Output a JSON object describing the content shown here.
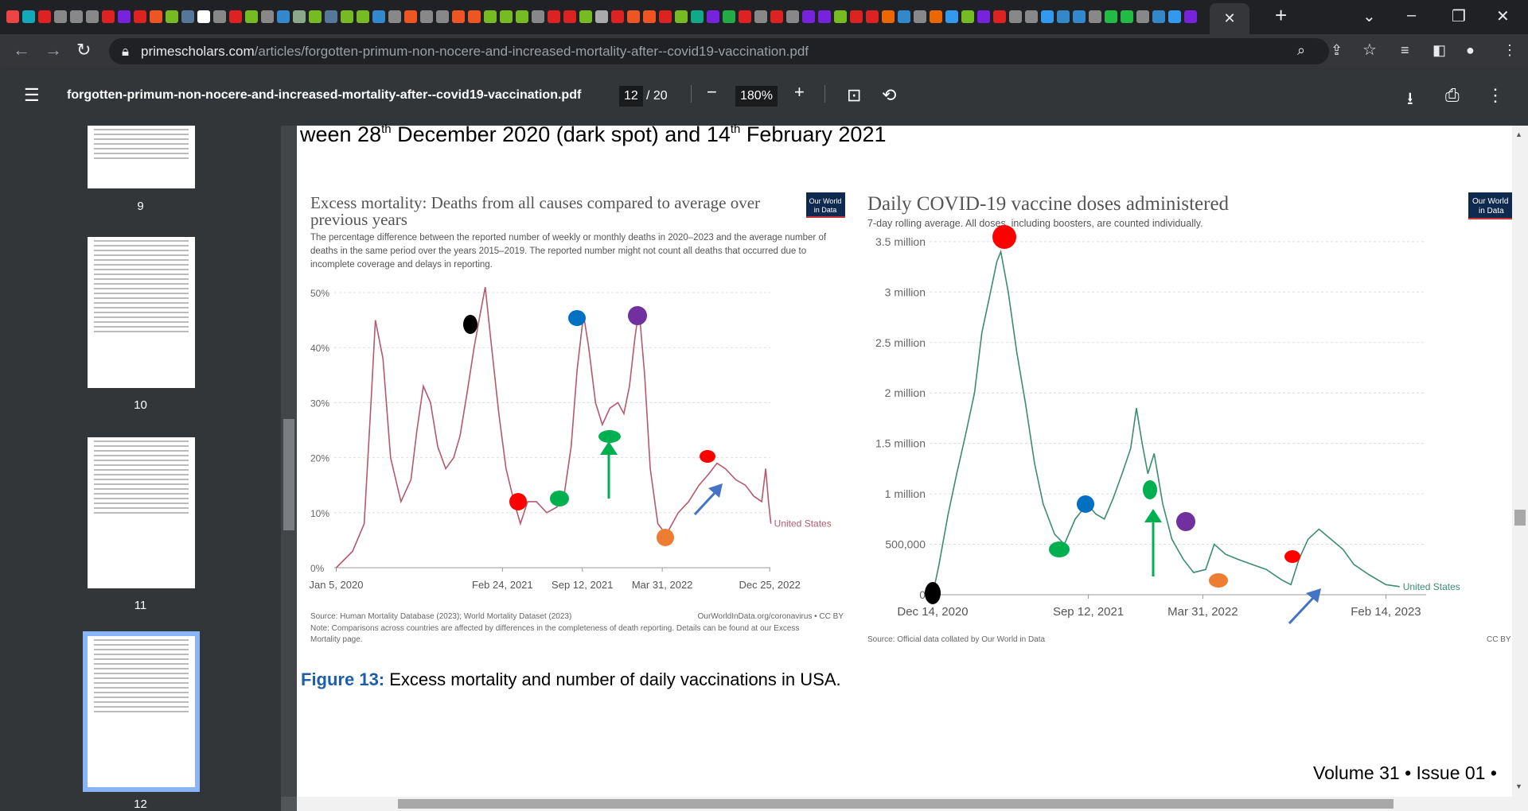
{
  "browser": {
    "favicon_colors": [
      "#e44",
      "#1ab",
      "#d22",
      "#888",
      "#888",
      "#888",
      "#d22",
      "#72d",
      "#d22",
      "#e52",
      "#7b2",
      "#579",
      "#fff",
      "#888",
      "#d22",
      "#7b2",
      "#888",
      "#38c",
      "#8a8",
      "#7b2",
      "#579",
      "#7b2",
      "#7b2",
      "#38c",
      "#888",
      "#e52",
      "#888",
      "#888",
      "#e52",
      "#e52",
      "#7b2",
      "#7b2",
      "#7b2",
      "#888",
      "#d22",
      "#d22",
      "#7b2",
      "#aaa",
      "#d22",
      "#e52",
      "#e52",
      "#d22",
      "#7b2",
      "#1a8",
      "#72d",
      "#2a4",
      "#d22",
      "#888",
      "#d22",
      "#888",
      "#72d",
      "#72d",
      "#7b2",
      "#d22",
      "#d22",
      "#e60",
      "#38c",
      "#888",
      "#e60",
      "#39e",
      "#7b2",
      "#72d",
      "#d22",
      "#888",
      "#888",
      "#39e",
      "#38c",
      "#38c",
      "#888",
      "#2b4",
      "#2b4",
      "#888",
      "#38c",
      "#39e",
      "#72d"
    ],
    "close_tab": "✕",
    "new_tab": "+",
    "url_host": "primescholars.com",
    "url_path": "/articles/forgotten-primum-non-nocere-and-increased-mortality-after--covid19-vaccination.pdf"
  },
  "pdf_toolbar": {
    "filename": "forgotten-primum-non-nocere-and-increased-mortality-after--covid19-vaccination.pdf",
    "page_current": "12",
    "page_total": "/ 20",
    "zoom": "180%"
  },
  "sidebar": {
    "thumbnails": [
      {
        "label": "9"
      },
      {
        "label": "10"
      },
      {
        "label": "11"
      },
      {
        "label": "12",
        "selected": true
      }
    ]
  },
  "document": {
    "heading_pre": "ween 28",
    "heading_sup1": "th",
    "heading_mid": " December 2020 (dark spot) and 14",
    "heading_sup2": "th",
    "heading_post": " February 2021",
    "caption_label": "Figure 13:",
    "caption_text": " Excess mortality and number of daily vaccinations in USA.",
    "footer": "Volume 31 • Issue 01 •",
    "owid_logo": "Our World in Data",
    "marker_colors": {
      "black": "#000000",
      "red": "#ff0000",
      "green": "#00b050",
      "blue": "#0070c0",
      "purple": "#7030a0",
      "orange": "#ed7d31",
      "arrow_green": "#00b050",
      "arrow_blue": "#4472c4"
    }
  },
  "chart_data": [
    {
      "type": "line",
      "title_line1": "Excess mortality: Deaths from all causes compared to average over",
      "title_line2": "previous years",
      "subtitle": [
        "The percentage difference between the reported number of weekly or monthly deaths in 2020–2023 and the average number of",
        "deaths in the same period over the years 2015–2019. The reported number might not count all deaths that occurred due to",
        "incomplete coverage and delays in reporting."
      ],
      "ytick_labels": [
        "0%",
        "10%",
        "20%",
        "30%",
        "40%",
        "50%"
      ],
      "yticks": [
        0,
        10,
        20,
        30,
        40,
        50
      ],
      "xtick_labels": [
        "Jan 5, 2020",
        "Feb 24, 2021",
        "Sep 12, 2021",
        "Mar 31, 2022",
        "Dec 25, 2022"
      ],
      "xticks": [
        "2020-01-05",
        "2021-02-24",
        "2021-09-12",
        "2022-03-31",
        "2022-12-25"
      ],
      "series": [
        {
          "name": "United States",
          "color": "#b5596f",
          "points": [
            [
              "2020-01-05",
              0
            ],
            [
              "2020-02-15",
              3
            ],
            [
              "2020-03-15",
              8
            ],
            [
              "2020-04-01",
              30
            ],
            [
              "2020-04-12",
              45
            ],
            [
              "2020-05-01",
              38
            ],
            [
              "2020-05-20",
              20
            ],
            [
              "2020-06-15",
              12
            ],
            [
              "2020-07-10",
              16
            ],
            [
              "2020-07-25",
              25
            ],
            [
              "2020-08-10",
              33
            ],
            [
              "2020-08-28",
              30
            ],
            [
              "2020-09-15",
              22
            ],
            [
              "2020-10-05",
              18
            ],
            [
              "2020-10-25",
              20
            ],
            [
              "2020-11-10",
              24
            ],
            [
              "2020-11-28",
              32
            ],
            [
              "2020-12-15",
              40
            ],
            [
              "2020-12-30",
              46
            ],
            [
              "2021-01-12",
              51
            ],
            [
              "2021-01-28",
              40
            ],
            [
              "2021-02-15",
              28
            ],
            [
              "2021-03-05",
              18
            ],
            [
              "2021-03-25",
              12
            ],
            [
              "2021-04-10",
              8
            ],
            [
              "2021-04-28",
              12
            ],
            [
              "2021-05-20",
              12
            ],
            [
              "2021-06-15",
              10
            ],
            [
              "2021-07-10",
              11
            ],
            [
              "2021-07-28",
              13
            ],
            [
              "2021-08-15",
              22
            ],
            [
              "2021-08-30",
              36
            ],
            [
              "2021-09-15",
              46
            ],
            [
              "2021-09-28",
              40
            ],
            [
              "2021-10-15",
              30
            ],
            [
              "2021-11-01",
              26
            ],
            [
              "2021-11-20",
              29
            ],
            [
              "2021-12-10",
              30
            ],
            [
              "2021-12-25",
              28
            ],
            [
              "2022-01-08",
              33
            ],
            [
              "2022-01-22",
              42
            ],
            [
              "2022-02-01",
              47
            ],
            [
              "2022-02-15",
              35
            ],
            [
              "2022-03-01",
              18
            ],
            [
              "2022-03-20",
              8
            ],
            [
              "2022-04-10",
              6
            ],
            [
              "2022-05-10",
              10
            ],
            [
              "2022-06-05",
              12
            ],
            [
              "2022-07-01",
              15
            ],
            [
              "2022-07-25",
              17
            ],
            [
              "2022-08-15",
              19
            ],
            [
              "2022-09-05",
              18
            ],
            [
              "2022-10-01",
              16
            ],
            [
              "2022-10-25",
              15
            ],
            [
              "2022-11-15",
              13
            ],
            [
              "2022-12-05",
              12
            ],
            [
              "2022-12-15",
              18
            ],
            [
              "2022-12-22",
              12
            ],
            [
              "2022-12-28",
              8
            ]
          ]
        }
      ],
      "source": "Source: Human Mortality Database (2023); World Mortality Dataset (2023)",
      "credit": "OurWorldInData.org/coronavirus • CC BY",
      "note_line1": "Note: Comparisons across countries are affected by differences in the completeness of death reporting. Details can be found at our Excess",
      "note_line2": "Mortality page."
    },
    {
      "type": "line",
      "title": "Daily COVID-19 vaccine doses administered",
      "subtitle": "7-day rolling average. All doses, including boosters, are counted individually.",
      "ytick_labels": [
        "0",
        "500,000",
        "1 million",
        "1.5 million",
        "2 million",
        "2.5 million",
        "3 million",
        "3.5 million"
      ],
      "yticks": [
        0,
        0.5,
        1,
        1.5,
        2,
        2.5,
        3,
        3.5
      ],
      "xtick_labels": [
        "Dec 14, 2020",
        "Sep 12, 2021",
        "Mar 31, 2022",
        "Feb 14, 2023"
      ],
      "xticks": [
        "2020-12-14",
        "2021-09-12",
        "2022-03-31",
        "2023-02-14"
      ],
      "series": [
        {
          "name": "United States",
          "color": "#3d8c6e",
          "points": [
            [
              "2020-12-14",
              0
            ],
            [
              "2020-12-25",
              0.3
            ],
            [
              "2021-01-10",
              0.8
            ],
            [
              "2021-01-25",
              1.2
            ],
            [
              "2021-02-10",
              1.6
            ],
            [
              "2021-02-25",
              2.0
            ],
            [
              "2021-03-10",
              2.6
            ],
            [
              "2021-03-25",
              3.0
            ],
            [
              "2021-04-05",
              3.3
            ],
            [
              "2021-04-12",
              3.4
            ],
            [
              "2021-04-25",
              3.0
            ],
            [
              "2021-05-10",
              2.4
            ],
            [
              "2021-05-25",
              1.9
            ],
            [
              "2021-06-10",
              1.3
            ],
            [
              "2021-06-25",
              0.9
            ],
            [
              "2021-07-15",
              0.6
            ],
            [
              "2021-08-01",
              0.5
            ],
            [
              "2021-08-20",
              0.75
            ],
            [
              "2021-09-10",
              0.9
            ],
            [
              "2021-09-25",
              0.8
            ],
            [
              "2021-10-10",
              0.75
            ],
            [
              "2021-10-25",
              0.95
            ],
            [
              "2021-11-10",
              1.2
            ],
            [
              "2021-11-25",
              1.45
            ],
            [
              "2021-12-05",
              1.85
            ],
            [
              "2021-12-15",
              1.5
            ],
            [
              "2021-12-25",
              1.2
            ],
            [
              "2022-01-05",
              1.4
            ],
            [
              "2022-01-20",
              0.9
            ],
            [
              "2022-02-05",
              0.55
            ],
            [
              "2022-02-25",
              0.35
            ],
            [
              "2022-03-15",
              0.22
            ],
            [
              "2022-04-05",
              0.25
            ],
            [
              "2022-04-20",
              0.5
            ],
            [
              "2022-05-10",
              0.4
            ],
            [
              "2022-06-01",
              0.35
            ],
            [
              "2022-06-25",
              0.3
            ],
            [
              "2022-07-20",
              0.25
            ],
            [
              "2022-08-15",
              0.15
            ],
            [
              "2022-09-01",
              0.1
            ],
            [
              "2022-09-15",
              0.35
            ],
            [
              "2022-10-01",
              0.55
            ],
            [
              "2022-10-20",
              0.65
            ],
            [
              "2022-11-10",
              0.55
            ],
            [
              "2022-12-01",
              0.45
            ],
            [
              "2022-12-20",
              0.3
            ],
            [
              "2023-01-15",
              0.2
            ],
            [
              "2023-02-14",
              0.1
            ],
            [
              "2023-03-10",
              0.08
            ]
          ]
        }
      ],
      "source": "Source: Official data collated by Our World in Data",
      "credit": "CC BY"
    }
  ]
}
